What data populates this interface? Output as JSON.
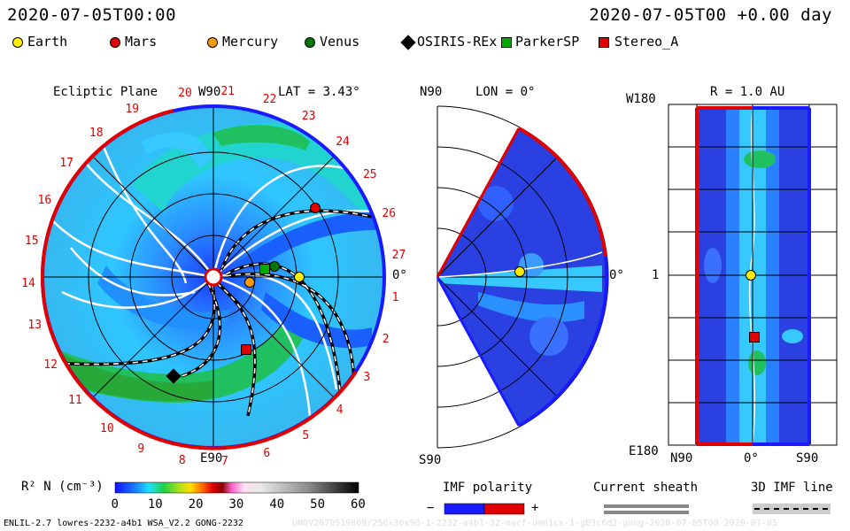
{
  "header": {
    "date_left": "2020-07-05T00:00",
    "date_right": "2020-07-05T00 +0.00 day"
  },
  "legend": [
    {
      "label": "Earth",
      "shape": "circle",
      "color": "#ffee00"
    },
    {
      "label": "Mars",
      "shape": "circle",
      "color": "#e00000"
    },
    {
      "label": "Mercury",
      "shape": "circle",
      "color": "#ff9900"
    },
    {
      "label": "Venus",
      "shape": "circle",
      "color": "#007700"
    },
    {
      "label": "OSIRIS-REx",
      "shape": "diamond",
      "color": "#000000"
    },
    {
      "label": "ParkerSP",
      "shape": "square",
      "color": "#00aa00"
    },
    {
      "label": "Stereo_A",
      "shape": "square",
      "color": "#e00000"
    }
  ],
  "chart_data": [
    {
      "type": "heatmap",
      "title": "Ecliptic Plane",
      "subtitle": "LAT = 3.43°",
      "top_label": "W90",
      "bottom_label": "E90",
      "right_label": "0°",
      "carrington_numbers": [
        "20",
        "21",
        "22",
        "23",
        "24",
        "25",
        "26",
        "27",
        "1",
        "2",
        "3",
        "4",
        "5",
        "6",
        "7",
        "8",
        "9",
        "10",
        "11",
        "12",
        "13",
        "14",
        "15",
        "16",
        "17",
        "18",
        "19"
      ],
      "bodies": [
        {
          "name": "Earth",
          "r_au": 1.0,
          "angle_deg": 0
        },
        {
          "name": "Mars",
          "r_au": 1.43,
          "angle_deg": 34
        },
        {
          "name": "Mercury",
          "r_au": 0.43,
          "angle_deg": -8
        },
        {
          "name": "Venus",
          "r_au": 0.72,
          "angle_deg": 10
        },
        {
          "name": "ParkerSP",
          "r_au": 0.61,
          "angle_deg": 9
        },
        {
          "name": "Stereo_A",
          "r_au": 0.93,
          "angle_deg": -66
        },
        {
          "name": "OSIRIS-REx",
          "r_au": 1.25,
          "angle_deg": -112
        }
      ]
    },
    {
      "type": "heatmap",
      "title": "LON = 0°",
      "top_label": "N90",
      "bottom_label": "S90",
      "right_label": "0°",
      "bodies": [
        {
          "name": "Earth",
          "r_au": 1.0,
          "angle_deg": 3.4
        }
      ]
    },
    {
      "type": "heatmap",
      "title": "R = 1.0 AU",
      "top_label": "W180",
      "bottom_label": "E180",
      "mid_label": "1",
      "x_labels": [
        "N90",
        "0°",
        "S90"
      ],
      "bodies": [
        {
          "name": "Earth",
          "lat_deg": 3.4,
          "lon_deg": 0
        },
        {
          "name": "Stereo_A",
          "lat_deg": -3,
          "lon_deg": -66
        }
      ]
    },
    {
      "type": "colorbar",
      "label": "R² N (cm⁻³)",
      "ticks": [
        "0",
        "10",
        "20",
        "30",
        "40",
        "50",
        "60"
      ],
      "range": [
        0,
        60
      ]
    }
  ],
  "bottom_legend": {
    "imf_title": "IMF polarity",
    "imf_minus": "−",
    "imf_plus": "+",
    "sheath_title": "Current sheath",
    "imf3d_title": "3D IMF line"
  },
  "footer": {
    "left": "ENLIL-2.7 lowres-2232-a4b1 WSA_V2.2 GONG-2232",
    "right": "UNOV2070519809/256x30x90-1-2232-a4b1-32-mscf-umn1cs-1-g83c6d2-gong-2020-07-05T00 2020-07-05"
  },
  "colors": {
    "away": "#e00000",
    "toward": "#1a1aff"
  }
}
